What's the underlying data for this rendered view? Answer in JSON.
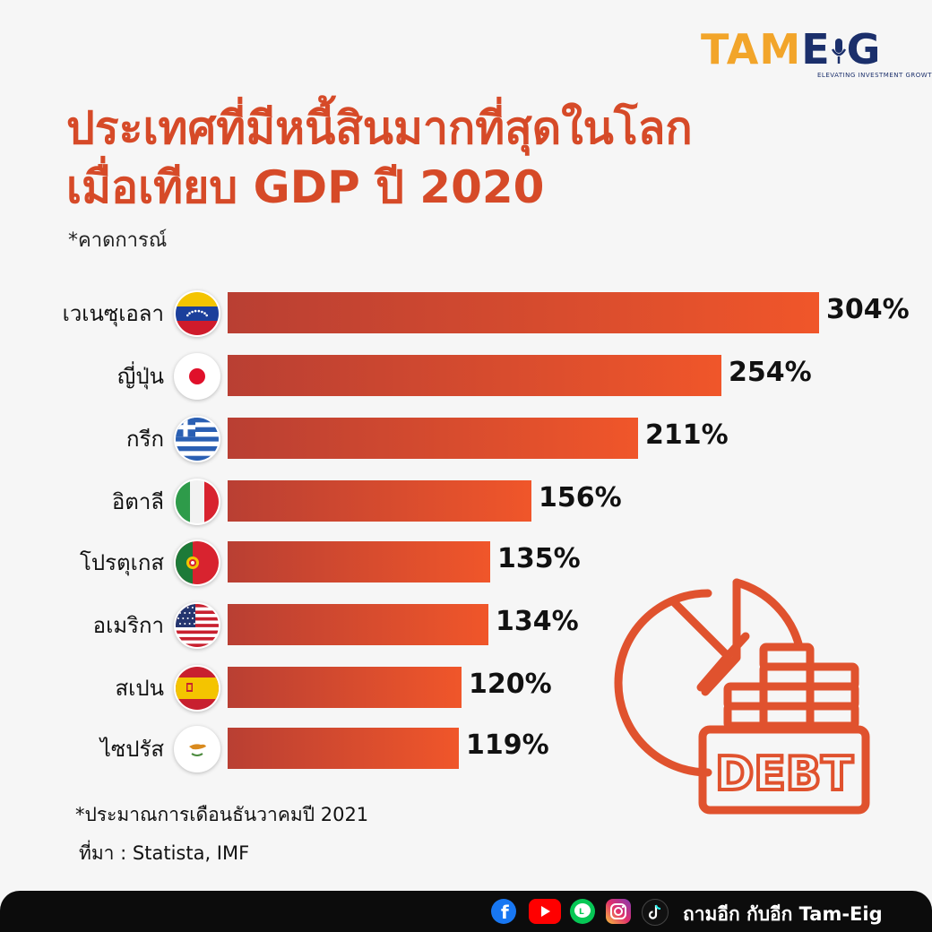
{
  "logo": {
    "part1": "TAM",
    "part2": "E",
    "part3": "G",
    "tagline": "ELEVATING INVESTMENT GROWTH"
  },
  "title": {
    "line1": "ประเทศที่มีหนี้สินมากที่สุดในโลก",
    "line2": "เมื่อเทียบ GDP ปี 2020"
  },
  "subtitle": "*คาดการณ์",
  "chart_data": {
    "type": "bar",
    "orientation": "horizontal",
    "categories": [
      "เวเนซุเอลา",
      "ญี่ปุ่น",
      "กรีก",
      "อิตาลี",
      "โปรตุเกส",
      "อเมริกา",
      "สเปน",
      "ไซปรัส"
    ],
    "values": [
      304,
      254,
      211,
      156,
      135,
      134,
      120,
      119
    ],
    "value_labels": [
      "304%",
      "254%",
      "211%",
      "156%",
      "135%",
      "134%",
      "120%",
      "119%"
    ],
    "flags": [
      "venezuela-flag",
      "japan-flag",
      "greece-flag",
      "italy-flag",
      "portugal-flag",
      "usa-flag",
      "spain-flag",
      "cyprus-flag"
    ],
    "bar_gradient": [
      "#b93f33",
      "#f0562a"
    ],
    "xlim": [
      0,
      304
    ],
    "grid": false
  },
  "debt_icon": {
    "label": "DEBT",
    "color": "#e0522e"
  },
  "notes": {
    "estimate": "*ประมาณการเดือนธันวาคมปี 2021",
    "source": "ที่มา : Statista, IMF"
  },
  "footer": {
    "text": "ถามอีก กับอีก Tam-Eig",
    "icons": [
      "facebook-icon",
      "youtube-icon",
      "line-icon",
      "instagram-icon",
      "tiktok-icon"
    ]
  },
  "colors": {
    "accent": "#d64a28",
    "logo_orange": "#f2a52a",
    "logo_navy": "#1b2f6b"
  }
}
